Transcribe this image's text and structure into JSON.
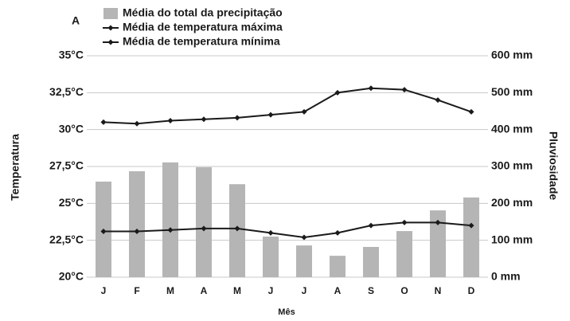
{
  "chart_data": {
    "type": "climograph",
    "panel_label": "A",
    "categories": [
      "J",
      "F",
      "M",
      "A",
      "M",
      "J",
      "J",
      "A",
      "S",
      "O",
      "N",
      "D"
    ],
    "series": [
      {
        "name": "Média do total da precipitação",
        "type": "bar",
        "axis": "y2",
        "color": "#b5b5b5",
        "values": [
          259,
          287,
          311,
          298,
          252,
          110,
          86,
          58,
          82,
          125,
          181,
          216
        ]
      },
      {
        "name": "Média de temperatura máxima",
        "type": "line",
        "axis": "y",
        "color": "#1a1a1a",
        "values": [
          30.5,
          30.4,
          30.6,
          30.7,
          30.8,
          31.0,
          31.2,
          32.5,
          32.8,
          32.7,
          32.0,
          31.2
        ]
      },
      {
        "name": "Média de temperatura mínima",
        "type": "line",
        "axis": "y",
        "color": "#1a1a1a",
        "values": [
          23.1,
          23.1,
          23.2,
          23.3,
          23.3,
          23.0,
          22.7,
          23.0,
          23.5,
          23.7,
          23.7,
          23.5
        ]
      }
    ],
    "y_label": "Temperatura",
    "y2_label": "Pluviosidade",
    "x_label": "Mês",
    "ylim": [
      20,
      35
    ],
    "yticks": [
      {
        "value": 20,
        "label": "20°C"
      },
      {
        "value": 22.5,
        "label": "22,5°C"
      },
      {
        "value": 25,
        "label": "25°C"
      },
      {
        "value": 27.5,
        "label": "27,5°C"
      },
      {
        "value": 30,
        "label": "30°C"
      },
      {
        "value": 32.5,
        "label": "32,5°C"
      },
      {
        "value": 35,
        "label": "35°C"
      }
    ],
    "y2lim": [
      0,
      600
    ],
    "y2ticks": [
      {
        "value": 0,
        "label": "0 mm"
      },
      {
        "value": 100,
        "label": "100 mm"
      },
      {
        "value": 200,
        "label": "200 mm"
      },
      {
        "value": 300,
        "label": "300 mm"
      },
      {
        "value": 400,
        "label": "400 mm"
      },
      {
        "value": 500,
        "label": "500 mm"
      },
      {
        "value": 600,
        "label": "600 mm"
      }
    ],
    "grid": true
  }
}
